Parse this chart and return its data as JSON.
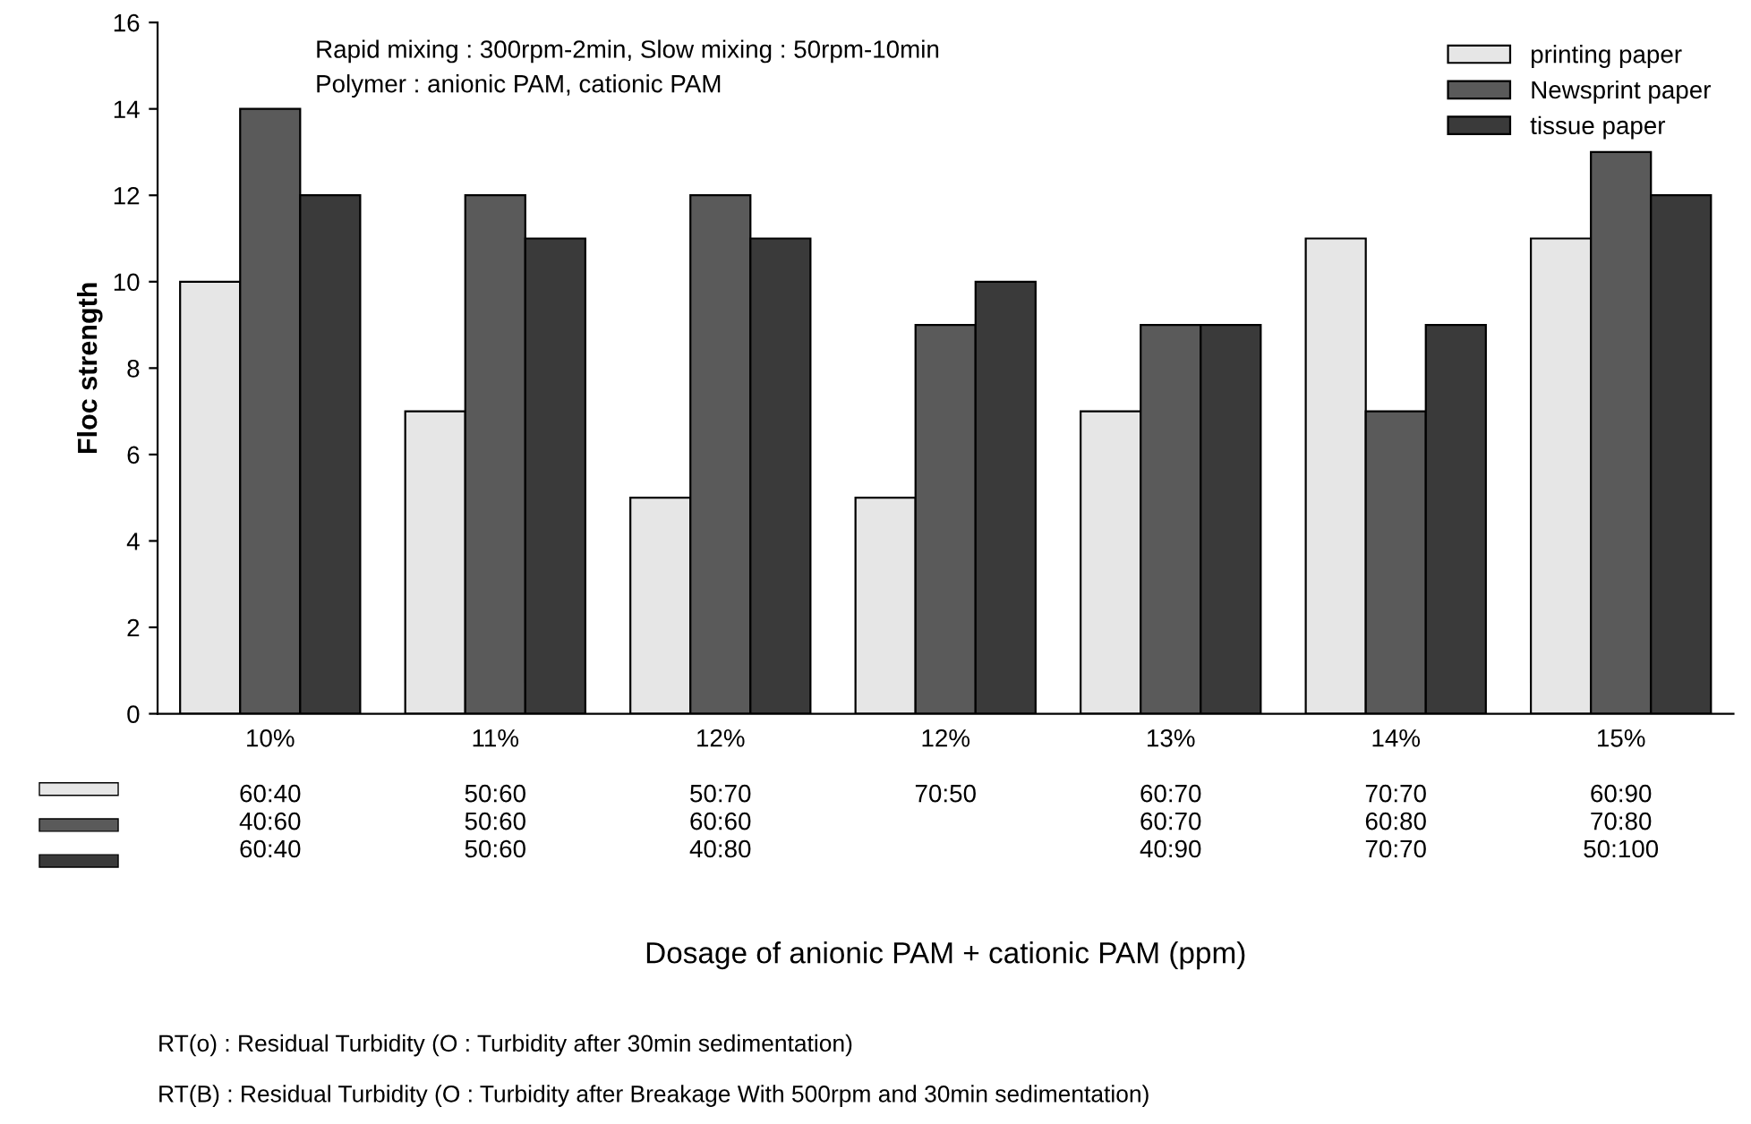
{
  "chart_data": {
    "type": "bar",
    "ylabel": "Floc strength",
    "categories": [
      "10%\n\n60:40\n40:60\n60:40",
      "11%\n\n50:60\n50:60\n50:60",
      "12%\n\n50:70\n60:60\n40:80",
      "12%\n\n70:50",
      "13%\n\n60:70\n60:70\n40:90",
      "14%\n\n70:70\n60:80\n70:70",
      "15%\n\n60:90\n70:80\n50:100"
    ],
    "series": [
      {
        "name": "printing paper",
        "color": "#e6e6e6",
        "values": [
          10,
          7,
          5,
          5,
          7,
          11,
          11
        ]
      },
      {
        "name": "Newsprint paper",
        "color": "#5a5a5a",
        "values": [
          14,
          12,
          12,
          9,
          9,
          7,
          13
        ]
      },
      {
        "name": "tissue paper",
        "color": "#3a3a3a",
        "values": [
          12,
          11,
          11,
          10,
          9,
          9,
          12
        ]
      }
    ],
    "ylim": [
      0,
      16
    ],
    "yticks": [
      0,
      2,
      4,
      6,
      8,
      10,
      12,
      14,
      16
    ],
    "grid": false,
    "legend": "top right",
    "annotations": [
      "Rapid mixing : 300rpm-2min, Slow mixing : 50rpm-10min",
      "Polymer : anionic PAM, cationic PAM",
      "Dosage of anionic PAM + cationic PAM (ppm)",
      "RT(o) : Residual Turbidity (O : Turbidity after 30min sedimentation)",
      "RT(B) : Residual Turbidity (O : Turbidity after Breakage With 500rpm and 30min sedimentation)"
    ]
  }
}
